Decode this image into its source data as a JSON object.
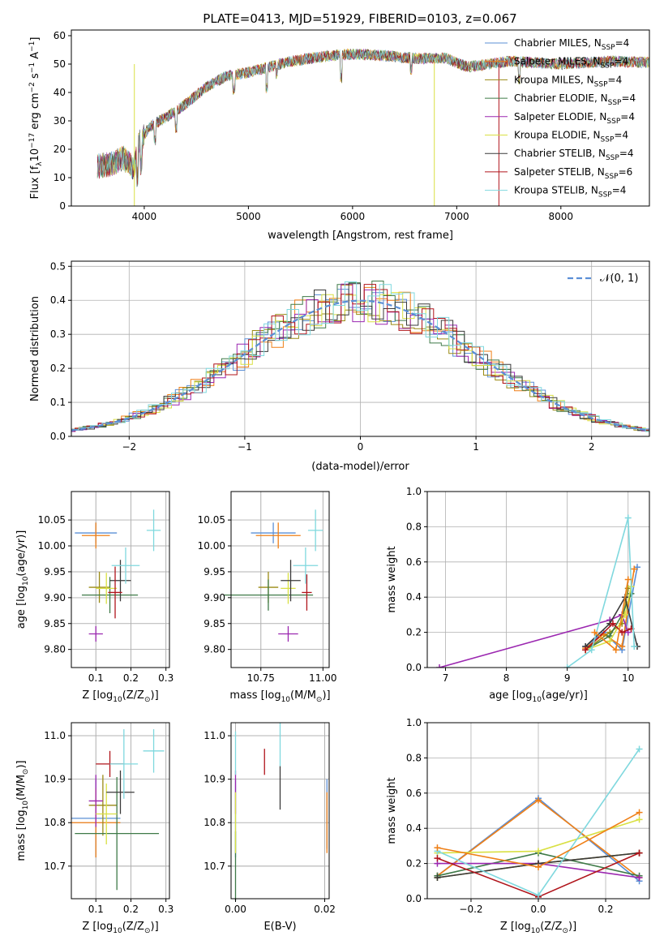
{
  "figure_title": "PLATE=0413, MJD=51929, FIBERID=0103, z=0.067",
  "models": [
    {
      "label": "Chabrier MILES, N",
      "sub": "SSP",
      "tail": "=4",
      "color": "#5b8fd6"
    },
    {
      "label": "Salpeter MILES, N",
      "sub": "SSP",
      "tail": "=4",
      "color": "#ef7f16"
    },
    {
      "label": "Kroupa MILES, N",
      "sub": "SSP",
      "tail": "=4",
      "color": "#9a8a14"
    },
    {
      "label": "Chabrier ELODIE, N",
      "sub": "SSP",
      "tail": "=4",
      "color": "#3f7a48"
    },
    {
      "label": "Salpeter ELODIE, N",
      "sub": "SSP",
      "tail": "=4",
      "color": "#9b27b0"
    },
    {
      "label": "Kroupa ELODIE, N",
      "sub": "SSP",
      "tail": "=4",
      "color": "#d9e043"
    },
    {
      "label": "Chabrier STELIB, N",
      "sub": "SSP",
      "tail": "=4",
      "color": "#3a3a3a"
    },
    {
      "label": "Salpeter STELIB, N",
      "sub": "SSP",
      "tail": "=6",
      "color": "#b0141b"
    },
    {
      "label": "Kroupa STELIB, N",
      "sub": "SSP",
      "tail": "=4",
      "color": "#7fd8de"
    }
  ],
  "chart_data": [
    {
      "id": "spectrum",
      "type": "line",
      "title": "PLATE=0413, MJD=51929, FIBERID=0103, z=0.067",
      "xlabel": "wavelength [Angstrom, rest frame]",
      "ylabel_main": "Flux [f",
      "ylabel_sub": "λ",
      "ylabel_rest": "10",
      "ylabel_sup1": "−17",
      "ylabel_rest2": " erg cm",
      "ylabel_sup2": "−2",
      "ylabel_rest3": " s",
      "ylabel_sup3": "−1",
      "ylabel_rest4": " A",
      "ylabel_sup4": "−1",
      "ylabel_end": "]",
      "xlim": [
        3300,
        8850
      ],
      "ylim": [
        0,
        62
      ],
      "xticks": [
        4000,
        5000,
        6000,
        7000,
        8000
      ],
      "yticks": [
        0,
        10,
        20,
        30,
        40,
        50,
        60
      ],
      "xrange": [
        3550,
        8850
      ],
      "continuum": [
        [
          3550,
          14
        ],
        [
          3700,
          15
        ],
        [
          3800,
          17
        ],
        [
          3900,
          13
        ],
        [
          3950,
          22
        ],
        [
          4050,
          28
        ],
        [
          4200,
          31
        ],
        [
          4400,
          36
        ],
        [
          4600,
          42
        ],
        [
          4800,
          46
        ],
        [
          5000,
          47
        ],
        [
          5200,
          49
        ],
        [
          5400,
          51
        ],
        [
          5600,
          52
        ],
        [
          5800,
          53
        ],
        [
          6000,
          53.5
        ],
        [
          6300,
          53
        ],
        [
          6600,
          52
        ],
        [
          6900,
          52
        ],
        [
          7100,
          49
        ],
        [
          7300,
          50
        ],
        [
          7500,
          51
        ],
        [
          8000,
          50
        ],
        [
          8500,
          51
        ],
        [
          8850,
          50.5
        ]
      ],
      "absorption": [
        [
          3934,
          9
        ],
        [
          3969,
          8
        ],
        [
          4101,
          6
        ],
        [
          4304,
          6
        ],
        [
          4861,
          5
        ],
        [
          5175,
          7
        ],
        [
          5270,
          3
        ],
        [
          5890,
          8
        ],
        [
          6563,
          4
        ],
        [
          7600,
          6
        ]
      ],
      "legend_position": "upper right"
    },
    {
      "id": "residual_histogram",
      "type": "histogram",
      "xlabel": "(data-model)/error",
      "ylabel": "Normed distribution",
      "xlim": [
        -2.5,
        2.5
      ],
      "ylim": [
        0,
        0.515
      ],
      "xticks": [
        -2,
        -1,
        0,
        1,
        2
      ],
      "yticks": [
        0.0,
        0.1,
        0.2,
        0.3,
        0.4,
        0.5
      ],
      "bin_width": 0.1,
      "reference_label": "𝒩(0, 1)",
      "legend_position": "upper right",
      "grid": true
    },
    {
      "id": "age_vs_Z",
      "type": "scatter",
      "xlabel": "Z [log",
      "xlabel_sub": "10",
      "xlabel_rest": "(Z/Z",
      "xlabel_sub2": "⊙",
      "xlabel_end": ")]",
      "ylabel": "age  [log",
      "ylabel_sub": "10",
      "ylabel_rest": "(age/yr)]",
      "xlim": [
        0.03,
        0.31
      ],
      "ylim": [
        9.765,
        10.105
      ],
      "xticks": [
        0.1,
        0.2,
        0.3
      ],
      "yticks": [
        9.8,
        9.85,
        9.9,
        9.95,
        10.0,
        10.05
      ],
      "points": [
        {
          "x": 0.1,
          "y": 10.025,
          "xerr": 0.06,
          "yerr": 0.02,
          "model": 0
        },
        {
          "x": 0.1,
          "y": 10.02,
          "xerr": 0.04,
          "yerr": 0.025,
          "model": 1
        },
        {
          "x": 0.11,
          "y": 9.92,
          "xerr": 0.03,
          "yerr": 0.03,
          "model": 2
        },
        {
          "x": 0.14,
          "y": 9.905,
          "xerr": 0.08,
          "yerr": 0.035,
          "model": 3
        },
        {
          "x": 0.1,
          "y": 9.83,
          "xerr": 0.02,
          "yerr": 0.015,
          "model": 4
        },
        {
          "x": 0.13,
          "y": 9.918,
          "xerr": 0.03,
          "yerr": 0.03,
          "model": 5
        },
        {
          "x": 0.17,
          "y": 9.933,
          "xerr": 0.03,
          "yerr": 0.04,
          "model": 6
        },
        {
          "x": 0.155,
          "y": 9.91,
          "xerr": 0.02,
          "yerr": 0.05,
          "model": 7
        },
        {
          "x": 0.185,
          "y": 9.962,
          "xerr": 0.04,
          "yerr": 0.035,
          "model": 8
        },
        {
          "x": 0.265,
          "y": 10.03,
          "xerr": 0.02,
          "yerr": 0.04,
          "model": 8
        }
      ]
    },
    {
      "id": "age_vs_mass",
      "type": "scatter",
      "xlabel": "mass [log",
      "xlabel_sub": "10",
      "xlabel_rest": "(M/M",
      "xlabel_sub2": "⊙",
      "xlabel_end": ")]",
      "xlim": [
        10.63,
        11.025
      ],
      "ylim": [
        9.765,
        10.105
      ],
      "xticks": [
        10.75,
        11.0
      ],
      "yticks": [
        9.8,
        9.85,
        9.9,
        9.95,
        10.0,
        10.05
      ],
      "points": [
        {
          "x": 10.8,
          "y": 10.025,
          "xerr": 0.09,
          "yerr": 0.02,
          "model": 0
        },
        {
          "x": 10.82,
          "y": 10.02,
          "xerr": 0.09,
          "yerr": 0.025,
          "model": 1
        },
        {
          "x": 10.78,
          "y": 9.92,
          "xerr": 0.04,
          "yerr": 0.03,
          "model": 2
        },
        {
          "x": 10.78,
          "y": 9.905,
          "xerr": 0.18,
          "yerr": 0.03,
          "model": 3
        },
        {
          "x": 10.86,
          "y": 9.83,
          "xerr": 0.04,
          "yerr": 0.015,
          "model": 4
        },
        {
          "x": 10.86,
          "y": 9.918,
          "xerr": 0.03,
          "yerr": 0.03,
          "model": 5
        },
        {
          "x": 10.87,
          "y": 9.933,
          "xerr": 0.04,
          "yerr": 0.04,
          "model": 6
        },
        {
          "x": 10.935,
          "y": 9.91,
          "xerr": 0.02,
          "yerr": 0.035,
          "model": 7
        },
        {
          "x": 10.93,
          "y": 9.962,
          "xerr": 0.05,
          "yerr": 0.035,
          "model": 8
        },
        {
          "x": 10.97,
          "y": 10.03,
          "xerr": 0.03,
          "yerr": 0.04,
          "model": 8
        }
      ]
    },
    {
      "id": "weight_vs_age",
      "type": "line",
      "xlabel": "age  [log",
      "xlabel_sub": "10",
      "xlabel_rest": "(age/yr)]",
      "ylabel": "mass weight",
      "xlim": [
        6.7,
        10.35
      ],
      "ylim": [
        0.0,
        1.0
      ],
      "xticks": [
        7,
        8,
        9,
        10
      ],
      "yticks": [
        0.0,
        0.2,
        0.4,
        0.6,
        0.8,
        1.0
      ],
      "grid": true,
      "series": [
        {
          "model": 0,
          "x": [
            9.3,
            9.6,
            9.9,
            10.15
          ],
          "y": [
            0.12,
            0.2,
            0.1,
            0.57
          ]
        },
        {
          "model": 1,
          "x": [
            9.3,
            9.6,
            9.9,
            10.1
          ],
          "y": [
            0.11,
            0.19,
            0.12,
            0.56
          ]
        },
        {
          "model": 2,
          "x": [
            9.3,
            9.7,
            9.9,
            10.0
          ],
          "y": [
            0.1,
            0.2,
            0.25,
            0.45
          ]
        },
        {
          "model": 3,
          "x": [
            9.3,
            9.7,
            9.9,
            10.05
          ],
          "y": [
            0.1,
            0.18,
            0.3,
            0.42
          ]
        },
        {
          "model": 4,
          "x": [
            6.9,
            9.7,
            9.9,
            10.0
          ],
          "y": [
            0.0,
            0.27,
            0.3,
            0.2
          ]
        },
        {
          "model": 5,
          "x": [
            9.3,
            9.7,
            9.95,
            10.05
          ],
          "y": [
            0.1,
            0.15,
            0.3,
            0.46
          ]
        },
        {
          "model": 6,
          "x": [
            9.3,
            9.7,
            9.95,
            10.15
          ],
          "y": [
            0.12,
            0.25,
            0.4,
            0.12
          ]
        },
        {
          "model": 7,
          "x": [
            9.3,
            9.75,
            9.9,
            10.05
          ],
          "y": [
            0.1,
            0.25,
            0.2,
            0.22
          ]
        },
        {
          "model": 8,
          "x": [
            9.0,
            9.4,
            10.0,
            10.1
          ],
          "y": [
            0.0,
            0.1,
            0.85,
            0.12
          ]
        },
        {
          "model": 1,
          "x": [
            9.45,
            9.8,
            10.0
          ],
          "y": [
            0.2,
            0.1,
            0.5
          ]
        }
      ]
    },
    {
      "id": "mass_vs_Z",
      "type": "scatter",
      "xlabel": "Z [log",
      "xlabel_sub": "10",
      "xlabel_rest": "(Z/Z",
      "xlabel_sub2": "⊙",
      "xlabel_end": ")]",
      "ylabel": "mass [log",
      "ylabel_sub": "10",
      "ylabel_rest": "(M/M",
      "ylabel_sub2": "⊙",
      "ylabel_end": ")]",
      "xlim": [
        0.03,
        0.31
      ],
      "ylim": [
        10.625,
        11.03
      ],
      "xticks": [
        0.1,
        0.2,
        0.3
      ],
      "yticks": [
        10.7,
        10.8,
        10.9,
        11.0
      ],
      "points": [
        {
          "x": 0.1,
          "y": 10.81,
          "xerr": 0.07,
          "yerr": 0.09,
          "model": 0
        },
        {
          "x": 0.1,
          "y": 10.8,
          "xerr": 0.07,
          "yerr": 0.08,
          "model": 1
        },
        {
          "x": 0.12,
          "y": 10.84,
          "xerr": 0.04,
          "yerr": 0.07,
          "model": 2
        },
        {
          "x": 0.16,
          "y": 10.775,
          "xerr": 0.12,
          "yerr": 0.13,
          "model": 3
        },
        {
          "x": 0.1,
          "y": 10.85,
          "xerr": 0.02,
          "yerr": 0.06,
          "model": 4
        },
        {
          "x": 0.13,
          "y": 10.82,
          "xerr": 0.03,
          "yerr": 0.07,
          "model": 5
        },
        {
          "x": 0.17,
          "y": 10.87,
          "xerr": 0.04,
          "yerr": 0.05,
          "model": 6
        },
        {
          "x": 0.14,
          "y": 10.935,
          "xerr": 0.04,
          "yerr": 0.03,
          "model": 7
        },
        {
          "x": 0.18,
          "y": 10.935,
          "xerr": 0.04,
          "yerr": 0.08,
          "model": 8
        },
        {
          "x": 0.265,
          "y": 10.965,
          "xerr": 0.03,
          "yerr": 0.05,
          "model": 8
        }
      ]
    },
    {
      "id": "mass_vs_EBV",
      "type": "scatter",
      "xlabel": "E(B-V)",
      "xlim": [
        -0.001,
        0.021
      ],
      "ylim": [
        10.625,
        11.03
      ],
      "xticks": [
        0.0,
        0.02
      ],
      "yticks": [
        10.7,
        10.8,
        10.9,
        11.0
      ],
      "points": [
        {
          "x": 0.0,
          "y": 10.81,
          "yerr": 0.09,
          "model": 0
        },
        {
          "x": 0.0,
          "y": 10.7,
          "yerr": 0.08,
          "model": 3
        },
        {
          "x": 0.0,
          "y": 10.87,
          "yerr": 0.05,
          "model": 4
        },
        {
          "x": 0.0,
          "y": 10.8,
          "yerr": 0.07,
          "model": 5
        },
        {
          "x": 0.0,
          "y": 10.96,
          "yerr": 0.05,
          "model": 8
        },
        {
          "x": 0.0065,
          "y": 10.94,
          "yerr": 0.03,
          "model": 7
        },
        {
          "x": 0.01,
          "y": 10.88,
          "yerr": 0.05,
          "model": 6
        },
        {
          "x": 0.01,
          "y": 10.98,
          "yerr": 0.05,
          "model": 8
        },
        {
          "x": 0.0205,
          "y": 10.82,
          "yerr": 0.08,
          "model": 0
        },
        {
          "x": 0.0205,
          "y": 10.8,
          "yerr": 0.07,
          "model": 1
        }
      ]
    },
    {
      "id": "weight_vs_Z",
      "type": "line",
      "xlabel": "Z [log",
      "xlabel_sub": "10",
      "xlabel_rest": "(Z/Z",
      "xlabel_sub2": "⊙",
      "xlabel_end": ")]",
      "ylabel": "mass weight",
      "xlim": [
        -0.33,
        0.33
      ],
      "ylim": [
        0.0,
        1.0
      ],
      "xticks": [
        -0.2,
        0.0,
        0.2
      ],
      "yticks": [
        0.0,
        0.2,
        0.4,
        0.6,
        0.8,
        1.0
      ],
      "grid": true,
      "series": [
        {
          "model": 0,
          "x": [
            -0.3,
            0.0,
            0.3
          ],
          "y": [
            0.13,
            0.57,
            0.1
          ]
        },
        {
          "model": 1,
          "x": [
            -0.3,
            0.0,
            0.3
          ],
          "y": [
            0.13,
            0.56,
            0.12
          ]
        },
        {
          "model": 2,
          "x": [
            -0.3,
            0.0,
            0.3
          ],
          "y": [
            0.12,
            0.2,
            0.26
          ]
        },
        {
          "model": 3,
          "x": [
            -0.3,
            0.0,
            0.3
          ],
          "y": [
            0.13,
            0.26,
            0.13
          ]
        },
        {
          "model": 4,
          "x": [
            -0.3,
            0.0,
            0.3
          ],
          "y": [
            0.2,
            0.2,
            0.12
          ]
        },
        {
          "model": 5,
          "x": [
            -0.3,
            0.0,
            0.3
          ],
          "y": [
            0.26,
            0.27,
            0.45
          ]
        },
        {
          "model": 6,
          "x": [
            -0.3,
            0.0,
            0.3
          ],
          "y": [
            0.12,
            0.2,
            0.26
          ]
        },
        {
          "model": 7,
          "x": [
            -0.3,
            0.0,
            0.3
          ],
          "y": [
            0.23,
            0.01,
            0.26
          ]
        },
        {
          "model": 8,
          "x": [
            -0.3,
            0.0,
            0.3
          ],
          "y": [
            0.27,
            0.02,
            0.85
          ]
        },
        {
          "model": 1,
          "x": [
            -0.3,
            0.0,
            0.3
          ],
          "y": [
            0.29,
            0.18,
            0.49
          ]
        }
      ]
    }
  ]
}
